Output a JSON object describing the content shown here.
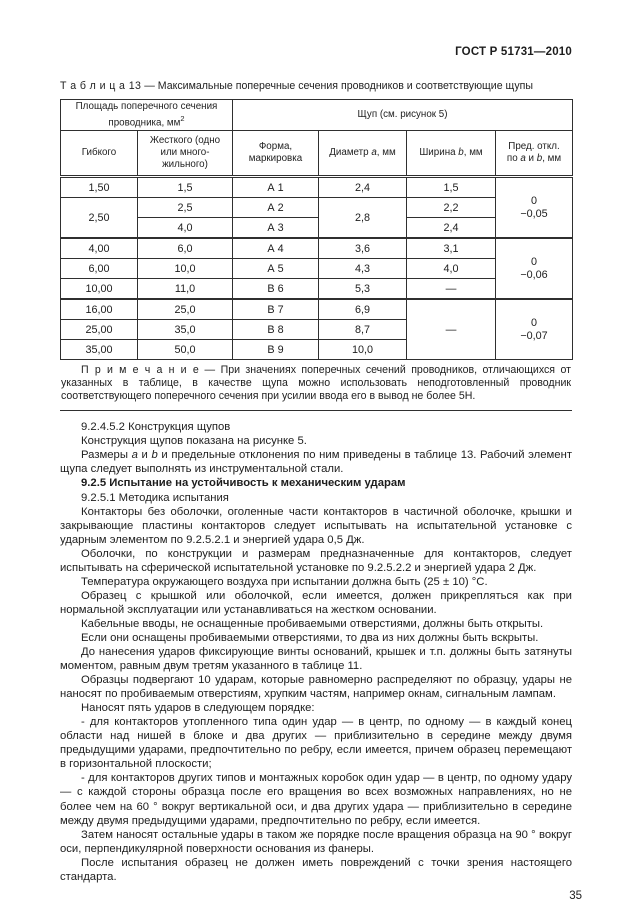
{
  "page": {
    "doc_code": "ГОСТ Р 51731—2010",
    "page_number": "35"
  },
  "table13": {
    "caption_label": "Т а б л и ц а  13",
    "caption_text": "—  Максимальные поперечные сечения проводников и соответствующие щупы",
    "header": {
      "area_group": "Площадь поперечного сечения проводника, мм",
      "area_group_sup": "2",
      "probe_group": "Щуп (см. рисунок 5)",
      "flexible": "Гибкого",
      "rigid": "Жесткого (одно или много-жильного)",
      "shape": "Форма, маркировка",
      "diameter_pre": "Диаметр ",
      "diameter_it": "a",
      "diameter_post": ", мм",
      "width_pre": "Ширина ",
      "width_it": "b",
      "width_post": ", мм",
      "dev_line1": "Пред. откл.",
      "dev_l2_pre": "по ",
      "dev_l2_a": "a",
      "dev_l2_mid": " и ",
      "dev_l2_b": "b",
      "dev_l2_post": ", мм"
    },
    "rows": [
      {
        "flexible": "1,50",
        "rigid": "1,5",
        "mark": "А 1",
        "diameter": "2,4",
        "width": "1,5",
        "dev0": "0",
        "dev1": "−0,05"
      },
      {
        "flexible": "2,50",
        "rigid": "2,5",
        "mark": "А 2",
        "diameter": "2,8",
        "width": "2,2"
      },
      {
        "rigid": "4,0",
        "mark": "А 3",
        "width": "2,4"
      },
      {
        "flexible": "4,00",
        "rigid": "6,0",
        "mark": "А 4",
        "diameter": "3,6",
        "width": "3,1",
        "dev0": "0",
        "dev1": "−0,06"
      },
      {
        "flexible": "6,00",
        "rigid": "10,0",
        "mark": "А 5",
        "diameter": "4,3",
        "width": "4,0"
      },
      {
        "flexible": "10,00",
        "rigid": "11,0",
        "mark": "В 6",
        "diameter": "5,3",
        "width": "—"
      },
      {
        "flexible": "16,00",
        "rigid": "25,0",
        "mark": "В 7",
        "diameter": "6,9",
        "width": "—",
        "dev0": "0",
        "dev1": "−0,07"
      },
      {
        "flexible": "25,00",
        "rigid": "35,0",
        "mark": "В 8",
        "diameter": "8,7"
      },
      {
        "flexible": "35,00",
        "rigid": "50,0",
        "mark": "В 9",
        "diameter": "10,0"
      }
    ],
    "note_label": "П р и м е ч а н и е",
    "note_text": " — При значениях поперечных сечений проводников, отличающихся от указанных в таблице, в качестве щупа можно использовать неподготовленный проводник соответствующего поперечного сечения при усилии ввода его в вывод не более 5Н."
  },
  "body": {
    "paragraphs": [
      {
        "segments": [
          {
            "t": "9.2.4.5.2  Конструкция щупов"
          }
        ]
      },
      {
        "segments": [
          {
            "t": "Конструкция щупов показана на рисунке 5."
          }
        ]
      },
      {
        "segments": [
          {
            "t": "Размеры "
          },
          {
            "t": "а",
            "i": true
          },
          {
            "t": " и "
          },
          {
            "t": "b",
            "i": true
          },
          {
            "t": " и предельные отклонения по ним приведены в таблице 13. Рабочий элемент щупа следует выполнять из инструментальной стали."
          }
        ]
      },
      {
        "bold": true,
        "segments": [
          {
            "t": "9.2.5  Испытание на устойчивость к механическим ударам"
          }
        ]
      },
      {
        "segments": [
          {
            "t": "9.2.5.1  Методика испытания"
          }
        ]
      },
      {
        "segments": [
          {
            "t": "Контакторы без оболочки, оголенные части контакторов в частичной оболочке, крышки и закрывающие пластины контакторов следует испытывать на испытательной установке с ударным элементом по 9.2.5.2.1 и энергией удара 0,5 Дж."
          }
        ]
      },
      {
        "segments": [
          {
            "t": "Оболочки, по конструкции и размерам предназначенные для контакторов, следует испытывать на сферической испытательной установке по 9.2.5.2.2 и энергией удара 2 Дж."
          }
        ]
      },
      {
        "segments": [
          {
            "t": "Температура окружающего воздуха при испытании должна быть (25 ± 10) °С."
          }
        ]
      },
      {
        "segments": [
          {
            "t": "Образец с крышкой или оболочкой, если имеется, должен прикрепляться как при нормальной эксплуатации или устанавливаться на жестком основании."
          }
        ]
      },
      {
        "segments": [
          {
            "t": "Кабельные вводы, не оснащенные пробиваемыми отверстиями, должны быть открыты."
          }
        ]
      },
      {
        "segments": [
          {
            "t": "Если они оснащены пробиваемыми отверстиями, то два из них должны быть вскрыты."
          }
        ]
      },
      {
        "segments": [
          {
            "t": "До нанесения ударов фиксирующие винты оснований, крышек и т.п. должны быть затянуты моментом, равным двум третям указанного в таблице 11."
          }
        ]
      },
      {
        "segments": [
          {
            "t": "Образцы подвергают 10 ударам, которые равномерно распределяют по образцу, удары не наносят по пробиваемым отверстиям, хрупким частям, например окнам, сигнальным лампам."
          }
        ]
      },
      {
        "segments": [
          {
            "t": "Наносят пять ударов в следующем порядке:"
          }
        ]
      },
      {
        "segments": [
          {
            "t": "- для контакторов утопленного типа один удар — в центр, по одному — в каждый конец области над нишей в блоке и два других — приблизительно в середине между двумя предыдущими ударами, предпочтительно по ребру, если имеется, причем образец перемещают в горизонтальной плоскости;"
          }
        ]
      },
      {
        "segments": [
          {
            "t": "- для контакторов других типов и монтажных коробок один удар — в центр, по одному удару — с каждой стороны образца после его вращения во всех возможных направлениях, но не более чем на 60 ° вокруг вертикальной оси, и два других удара — приблизительно в середине между двумя предыдущими ударами, предпочтительно по ребру, если имеется."
          }
        ]
      },
      {
        "segments": [
          {
            "t": "Затем наносят остальные удары в таком же порядке после вращения образца на 90 ° вокруг оси, перпендикулярной поверхности основания из фанеры."
          }
        ]
      },
      {
        "segments": [
          {
            "t": "После испытания образец не должен иметь повреждений с точки зрения настоящего стандарта."
          }
        ]
      }
    ]
  }
}
